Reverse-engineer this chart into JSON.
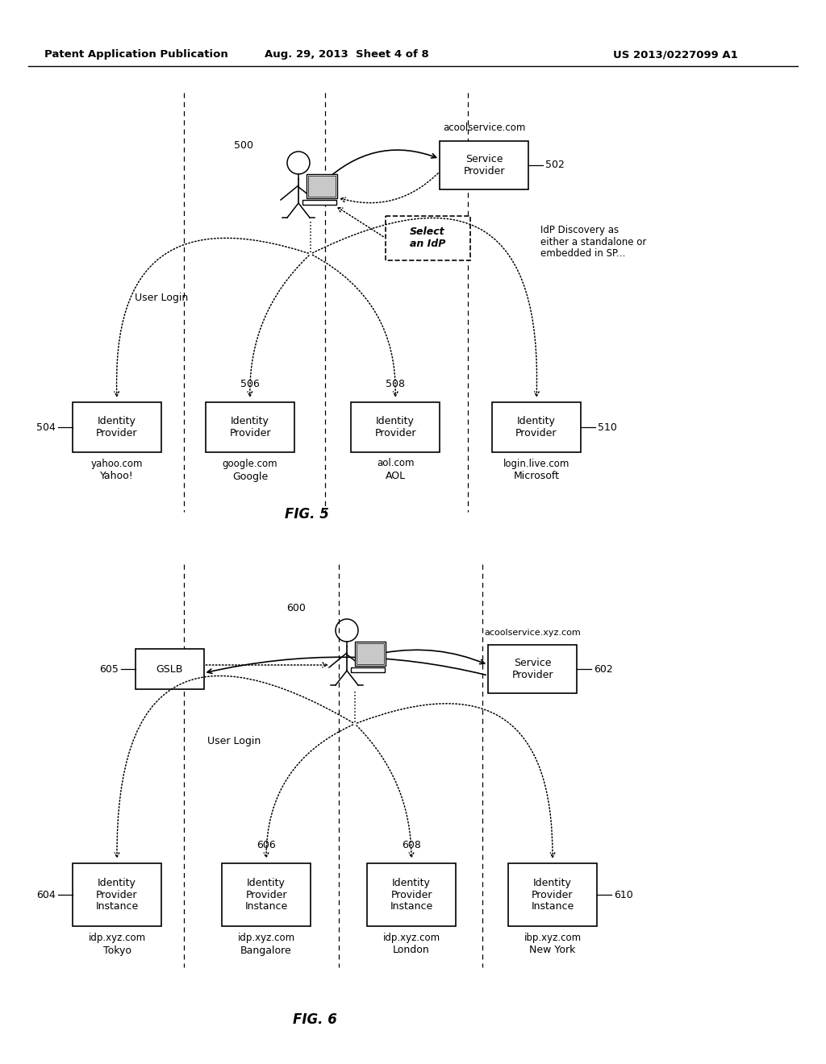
{
  "header_left": "Patent Application Publication",
  "header_mid": "Aug. 29, 2013  Sheet 4 of 8",
  "header_right": "US 2013/0227099 A1",
  "fig5_label": "FIG. 5",
  "fig6_label": "FIG. 6",
  "fig5": {
    "user_label": "500",
    "user_login_text": "User Login",
    "sp_label": "502",
    "sp_text": "Service\nProvider",
    "sp_url": "acoolservice.com",
    "select_idp_text": "Select\nan IdP",
    "discovery_text": "IdP Discovery as\neither a standalone or\nembedded in SP...",
    "providers": [
      {
        "label": "504",
        "box_text": "Identity\nProvider",
        "url": "yahoo.com",
        "name": "Yahoo!"
      },
      {
        "label": "506",
        "box_text": "Identity\nProvider",
        "url": "google.com",
        "name": "Google"
      },
      {
        "label": "508",
        "box_text": "Identity\nProvider",
        "url": "aol.com",
        "name": "AOL"
      },
      {
        "label": "510",
        "box_text": "Identity\nProvider",
        "url": "login.live.com",
        "name": "Microsoft"
      }
    ]
  },
  "fig6": {
    "user_label": "600",
    "user_login_text": "User Login",
    "sp_label": "602",
    "sp_text": "Service\nProvider",
    "sp_url": "acoolservice.xyz.com",
    "gslb_label": "605",
    "gslb_text": "GSLB",
    "providers": [
      {
        "label": "604",
        "box_text": "Identity\nProvider\nInstance",
        "url": "idp.xyz.com",
        "name": "Tokyo"
      },
      {
        "label": "606",
        "box_text": "Identity\nProvider\nInstance",
        "url": "idp.xyz.com",
        "name": "Bangalore"
      },
      {
        "label": "608",
        "box_text": "Identity\nProvider\nInstance",
        "url": "idp.xyz.com",
        "name": "London"
      },
      {
        "label": "610",
        "box_text": "Identity\nProvider\nInstance",
        "url": "ibp.xyz.com",
        "name": "New York"
      }
    ]
  }
}
